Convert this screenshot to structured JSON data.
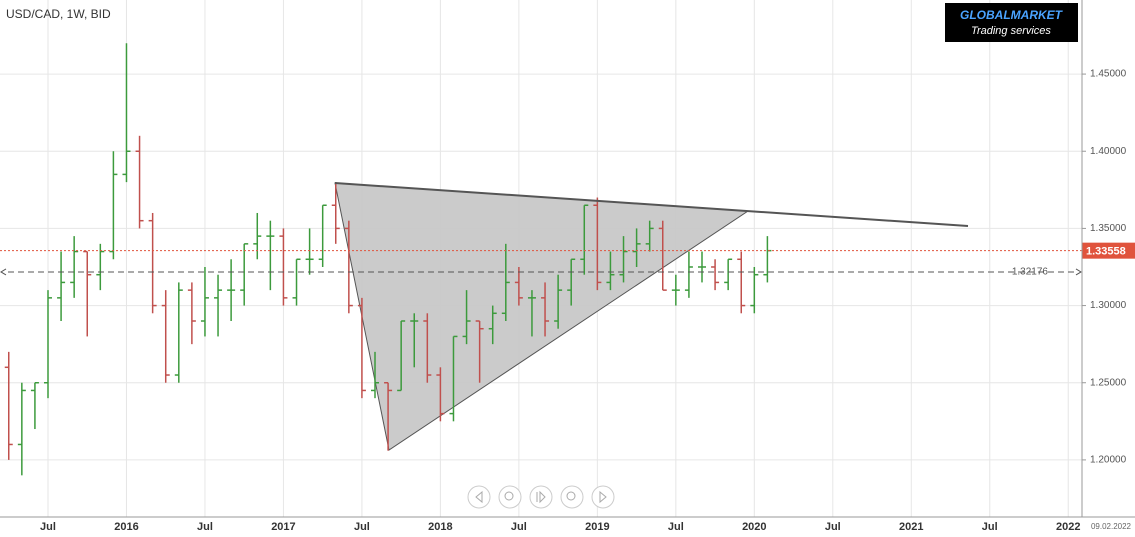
{
  "chart_data": {
    "type": "ohlc",
    "title": "USD/CAD, 1W, BID",
    "categories": [
      null,
      null,
      null,
      "Jul",
      null,
      null,
      null,
      null,
      null,
      "2016",
      null,
      null,
      null,
      null,
      null,
      "Jul",
      null,
      null,
      null,
      null,
      null,
      "2017",
      null,
      null,
      null,
      null,
      null,
      "Jul",
      null,
      null,
      null,
      null,
      null,
      "2018",
      null,
      null,
      null,
      null,
      null,
      "Jul",
      null,
      null,
      null,
      null,
      null,
      "2019",
      null,
      null,
      null,
      null,
      null,
      "Jul",
      null,
      null,
      null,
      null,
      null,
      "2020",
      null,
      null,
      null,
      null,
      null,
      "Jul",
      null,
      null,
      null,
      null,
      null,
      "2021",
      null,
      null,
      null,
      null,
      null,
      "Jul",
      null,
      null,
      null,
      null,
      null,
      "2022"
    ],
    "open": [
      1.26,
      1.21,
      1.245,
      1.25,
      1.305,
      1.315,
      1.335,
      1.32,
      1.335,
      1.385,
      1.4,
      1.355,
      1.3,
      1.255,
      1.31,
      1.29,
      1.305,
      1.31,
      1.31,
      1.34,
      1.345,
      1.345,
      1.305,
      1.33,
      1.33,
      1.365,
      1.35,
      1.3,
      1.245,
      1.25,
      1.245,
      1.29,
      1.29,
      1.255,
      1.23,
      1.28,
      1.29,
      1.285,
      1.295,
      1.315,
      1.305,
      1.305,
      1.29,
      1.31,
      1.33,
      1.365,
      1.315,
      1.32,
      1.335,
      1.34,
      1.35,
      1.31,
      1.31,
      1.325,
      1.325,
      1.315,
      1.33,
      1.3,
      1.32,
      null,
      null,
      null,
      null,
      null,
      null,
      null,
      null,
      null,
      null,
      null,
      null,
      null,
      null,
      null,
      null,
      null,
      null,
      null,
      null,
      null,
      null,
      null
    ],
    "high": [
      1.27,
      1.25,
      1.25,
      1.31,
      1.335,
      1.345,
      1.335,
      1.34,
      1.4,
      1.47,
      1.41,
      1.36,
      1.31,
      1.315,
      1.315,
      1.325,
      1.32,
      1.33,
      1.34,
      1.36,
      1.355,
      1.35,
      1.33,
      1.35,
      1.365,
      1.38,
      1.355,
      1.305,
      1.27,
      1.25,
      1.29,
      1.295,
      1.295,
      1.26,
      1.28,
      1.31,
      1.29,
      1.3,
      1.34,
      1.325,
      1.31,
      1.315,
      1.32,
      1.33,
      1.365,
      1.37,
      1.335,
      1.345,
      1.35,
      1.355,
      1.355,
      1.32,
      1.335,
      1.335,
      1.33,
      1.33,
      1.335,
      1.325,
      1.345,
      null,
      null,
      null,
      null,
      null,
      null,
      null,
      null,
      null,
      null,
      null,
      null,
      null,
      null,
      null,
      null,
      null,
      null,
      null,
      null,
      null,
      null,
      null
    ],
    "low": [
      1.2,
      1.19,
      1.22,
      1.24,
      1.29,
      1.305,
      1.28,
      1.31,
      1.33,
      1.38,
      1.35,
      1.295,
      1.25,
      1.25,
      1.275,
      1.28,
      1.28,
      1.29,
      1.3,
      1.33,
      1.31,
      1.3,
      1.3,
      1.32,
      1.325,
      1.34,
      1.295,
      1.24,
      1.24,
      1.206,
      1.245,
      1.26,
      1.25,
      1.225,
      1.225,
      1.275,
      1.25,
      1.275,
      1.29,
      1.3,
      1.28,
      1.28,
      1.285,
      1.3,
      1.32,
      1.31,
      1.31,
      1.315,
      1.325,
      1.335,
      1.31,
      1.3,
      1.305,
      1.315,
      1.31,
      1.31,
      1.295,
      1.295,
      1.315,
      null,
      null,
      null,
      null,
      null,
      null,
      null,
      null,
      null,
      null,
      null,
      null,
      null,
      null,
      null,
      null,
      null,
      null,
      null,
      null,
      null,
      null,
      null
    ],
    "close": [
      1.21,
      1.245,
      1.25,
      1.305,
      1.315,
      1.335,
      1.32,
      1.335,
      1.385,
      1.4,
      1.355,
      1.3,
      1.255,
      1.31,
      1.29,
      1.305,
      1.31,
      1.31,
      1.34,
      1.345,
      1.345,
      1.305,
      1.33,
      1.33,
      1.365,
      1.35,
      1.3,
      1.245,
      1.25,
      1.245,
      1.29,
      1.29,
      1.255,
      1.23,
      1.28,
      1.29,
      1.285,
      1.295,
      1.315,
      1.305,
      1.305,
      1.29,
      1.31,
      1.33,
      1.365,
      1.315,
      1.32,
      1.335,
      1.34,
      1.35,
      1.31,
      1.31,
      1.325,
      1.325,
      1.315,
      1.33,
      1.3,
      1.32,
      1.33558,
      null,
      null,
      null,
      null,
      null,
      null,
      null,
      null,
      null,
      null,
      null,
      null,
      null,
      null,
      null,
      null,
      null,
      null,
      null,
      null,
      null,
      null,
      null
    ],
    "up_color": "#3c9a3c",
    "down_color": "#c0504d",
    "ylim": [
      1.163,
      1.498
    ],
    "yticks": [
      {
        "value": 1.2,
        "label": "1.20000"
      },
      {
        "value": 1.25,
        "label": "1.25000"
      },
      {
        "value": 1.3,
        "label": "1.30000"
      },
      {
        "value": 1.35,
        "label": "1.35000"
      },
      {
        "value": 1.4,
        "label": "1.40000"
      },
      {
        "value": 1.45,
        "label": "1.45000"
      }
    ],
    "grid": true,
    "last_price": 1.33558,
    "last_price_color": "#e0533c",
    "level": 1.32176
  },
  "logo": {
    "title": "GLOBALMARKET",
    "subtitle": "Trading services"
  },
  "date": "09.02.2022"
}
